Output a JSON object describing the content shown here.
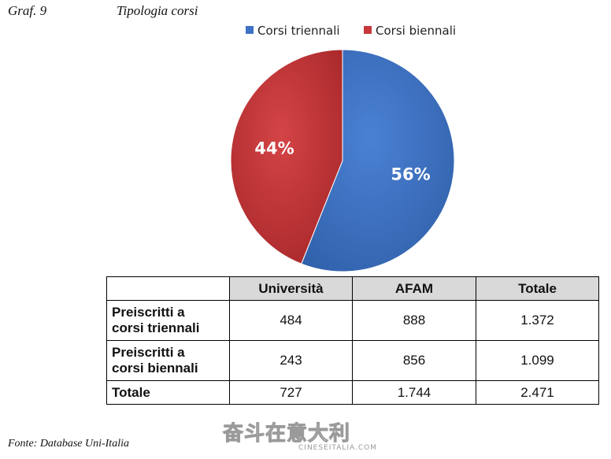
{
  "header": {
    "graph_number": "Graf. 9",
    "graph_title": "Tipologia corsi"
  },
  "chart_data": {
    "type": "pie",
    "title": "Tipologia corsi",
    "series": [
      {
        "name": "Corsi triennali",
        "value": 56,
        "label": "56%",
        "color": "#3e72c3"
      },
      {
        "name": "Corsi biennali",
        "value": 44,
        "label": "44%",
        "color": "#c8383a"
      }
    ],
    "legend_position": "top"
  },
  "table": {
    "headers": [
      "",
      "Università",
      "AFAM",
      "Totale"
    ],
    "rows": [
      {
        "label_line1": "Preiscritti a",
        "label_line2": "corsi triennali",
        "values": [
          "484",
          "888",
          "1.372"
        ]
      },
      {
        "label_line1": "Preiscritti a",
        "label_line2": "corsi biennali",
        "values": [
          "243",
          "856",
          "1.099"
        ]
      },
      {
        "label_line1": "Totale",
        "label_line2": "",
        "values": [
          "727",
          "1.744",
          "2.471"
        ]
      }
    ]
  },
  "footer": {
    "source": "Fonte: Database Uni-Italia"
  },
  "watermark": {
    "brand_cn": "奋斗在意大利",
    "domain": "CINESEITALIA.COM"
  }
}
